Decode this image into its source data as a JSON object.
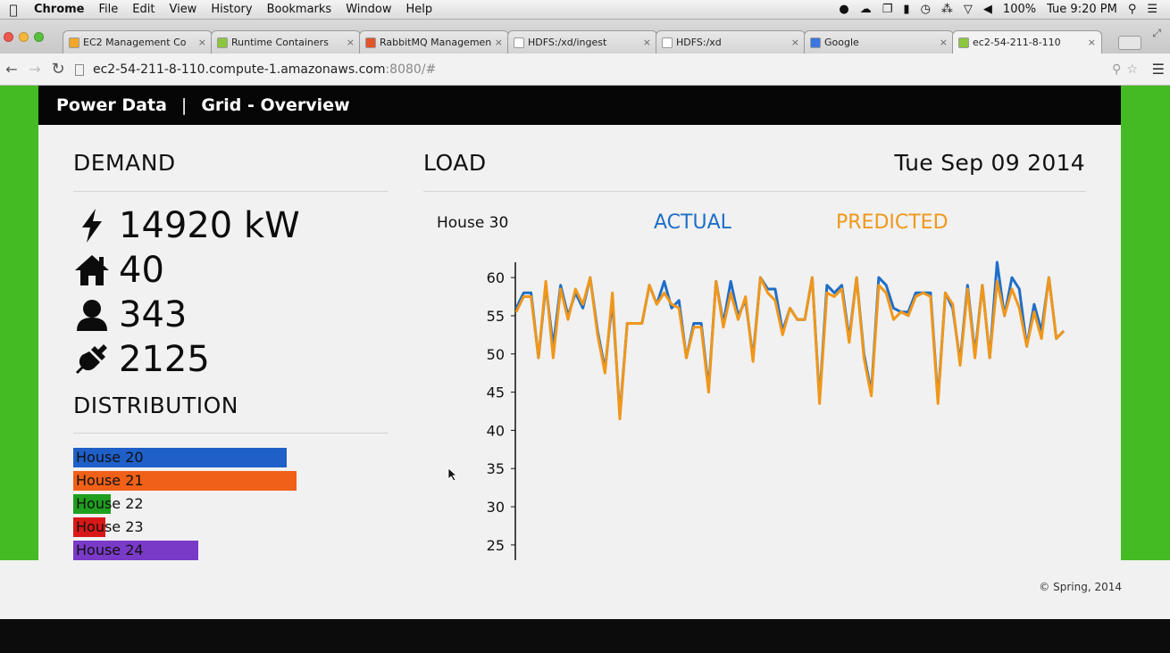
{
  "menubar": {
    "app": "Chrome",
    "items": [
      "File",
      "Edit",
      "View",
      "History",
      "Bookmarks",
      "Window",
      "Help"
    ],
    "battery": "100%",
    "clock": "Tue 9:20 PM"
  },
  "tabs": [
    {
      "label": "EC2 Management Co",
      "favicon_color": "#f2a72a"
    },
    {
      "label": "Runtime Containers",
      "favicon_color": "#8cc63f"
    },
    {
      "label": "RabbitMQ Management",
      "favicon_color": "#e0562a"
    },
    {
      "label": "HDFS:/xd/ingest",
      "favicon_color": "#ffffff"
    },
    {
      "label": "HDFS:/xd",
      "favicon_color": "#ffffff"
    },
    {
      "label": "Google",
      "favicon_color": "#3b77e0"
    },
    {
      "label": "ec2-54-211-8-110",
      "favicon_color": "#8cc63f"
    }
  ],
  "address": {
    "host": "ec2-54-211-8-110.compute-1.amazonaws.com",
    "port_path": ":8080/#"
  },
  "nav": {
    "brand": "Power Data",
    "separator": "|",
    "section": "Grid - Overview"
  },
  "demand": {
    "title": "DEMAND",
    "power": "14920 kW",
    "homes": "40",
    "people": "343",
    "devices": "2125"
  },
  "distribution": {
    "title": "DISTRIBUTION",
    "items": [
      {
        "label": "House 20",
        "color": "#1f5fc8",
        "share": 0.92
      },
      {
        "label": "House 21",
        "color": "#f06018",
        "share": 0.96
      },
      {
        "label": "House 22",
        "color": "#1f9e1f",
        "share": 0.16
      },
      {
        "label": "House 23",
        "color": "#d81818",
        "share": 0.14
      },
      {
        "label": "House 24",
        "color": "#7a3ac8",
        "share": 0.54
      }
    ]
  },
  "load": {
    "title": "LOAD",
    "date": "Tue Sep 09 2014",
    "house": "House 30",
    "actual_label": "ACTUAL",
    "predicted_label": "PREDICTED"
  },
  "colors": {
    "accent_green": "#44bb22",
    "actual": "#1f6ec8",
    "predicted": "#f0971a"
  },
  "chart_data": {
    "type": "line",
    "ylim": [
      23,
      62
    ],
    "y_ticks": [
      "60",
      "55",
      "50",
      "45",
      "40",
      "35",
      "30",
      "25"
    ],
    "series": [
      {
        "name": "ACTUAL",
        "values": [
          56,
          58,
          58,
          49.5,
          59,
          51,
          59,
          55,
          58,
          56,
          60,
          53,
          48,
          57,
          42,
          54,
          54,
          54,
          59,
          56.5,
          59.5,
          56,
          57,
          49.5,
          54,
          54,
          45.5,
          59.5,
          54,
          59.5,
          55,
          57,
          49.5,
          60,
          58.5,
          58.5,
          53,
          56,
          54.5,
          54.5,
          60,
          44,
          59,
          58,
          59,
          52,
          60,
          50,
          45,
          60,
          59,
          56,
          55.5,
          55.5,
          58,
          58,
          58,
          44,
          58,
          56,
          49,
          59,
          50,
          59,
          49.5,
          62,
          55,
          60,
          58.5,
          51,
          56.5,
          53,
          60,
          52,
          53
        ]
      },
      {
        "name": "PREDICTED",
        "values": [
          55.5,
          57.5,
          57.5,
          49.5,
          59.5,
          49.5,
          58.5,
          54.5,
          58.5,
          56.5,
          60,
          52.5,
          47.5,
          58,
          41.5,
          54,
          54,
          54,
          59,
          56.5,
          58,
          56.5,
          56,
          49.5,
          53.5,
          53.5,
          45,
          59.5,
          53.5,
          58,
          54.5,
          57.5,
          49,
          60,
          58,
          57,
          52.5,
          56,
          54.5,
          54.5,
          60,
          43.5,
          58,
          57.5,
          58.5,
          51.5,
          60,
          49.5,
          44.5,
          59,
          58,
          54.5,
          55.5,
          55,
          57.5,
          58,
          57.5,
          43.5,
          58,
          56.5,
          48.5,
          58.5,
          49.5,
          59,
          49.5,
          59.5,
          55,
          58.5,
          56,
          51,
          55.5,
          52,
          60,
          52,
          53
        ]
      }
    ]
  },
  "footer": "© Spring, 2014"
}
